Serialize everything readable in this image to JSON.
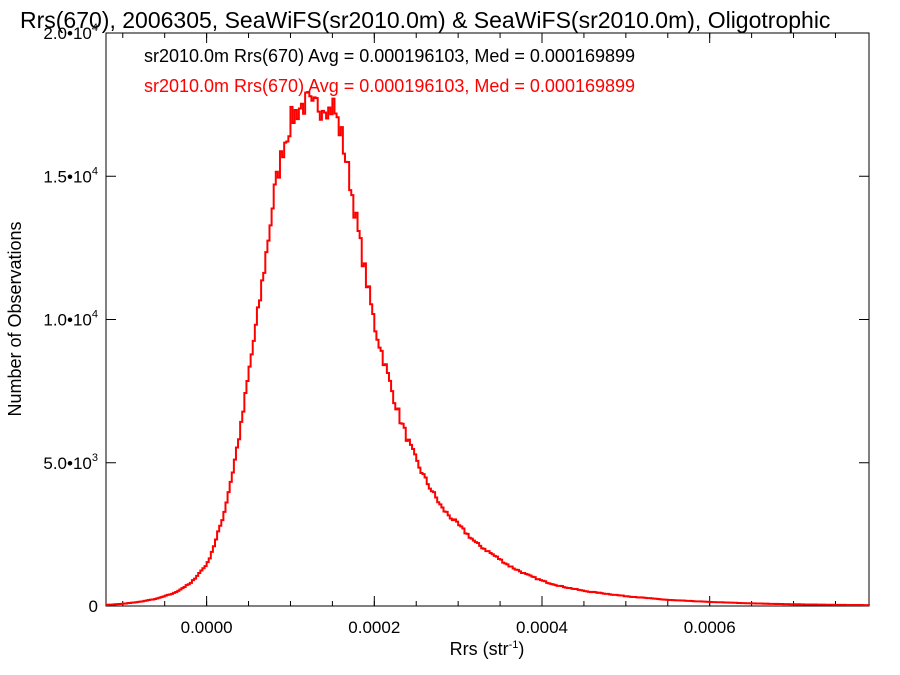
{
  "chart_data": {
    "type": "line",
    "title": "Rrs(670), 2006305, SeaWiFS(sr2010.0m) & SeaWiFS(sr2010.0m), Oligotrophic",
    "xlabel": "Rrs (str",
    "xlabel_sup": "-1",
    "xlabel_end": ")",
    "ylabel": "Number of Observations",
    "xlim": [
      -0.00012,
      0.00079
    ],
    "ylim": [
      0,
      20000
    ],
    "x_ticks": [
      {
        "value": 0.0,
        "label": "0.0000"
      },
      {
        "value": 0.0002,
        "label": "0.0002"
      },
      {
        "value": 0.0004,
        "label": "0.0004"
      },
      {
        "value": 0.0006,
        "label": "0.0006"
      }
    ],
    "y_ticks": [
      {
        "value": 0,
        "mant": "0",
        "exp": ""
      },
      {
        "value": 5000,
        "mant": "5.0•10",
        "exp": "3"
      },
      {
        "value": 10000,
        "mant": "1.0•10",
        "exp": "4"
      },
      {
        "value": 15000,
        "mant": "1.5•10",
        "exp": "4"
      },
      {
        "value": 20000,
        "mant": "2.0•10",
        "exp": "4"
      }
    ],
    "annotations": [
      {
        "text": "sr2010.0m Rrs(670) Avg = 0.000196103, Med = 0.000169899",
        "color": "#000000"
      },
      {
        "text": "sr2010.0m Rrs(670) Avg = 0.000196103, Med = 0.000169899",
        "color": "#ff0000"
      }
    ],
    "series": [
      {
        "color": "#ff0000",
        "style": "step",
        "x": [
          -0.00012,
          -0.0001,
          -8e-05,
          -6e-05,
          -4e-05,
          -2e-05,
          0.0,
          1e-05,
          2e-05,
          3e-05,
          4e-05,
          5e-05,
          6e-05,
          7e-05,
          8e-05,
          9e-05,
          0.0001,
          0.00011,
          0.00012,
          0.000125,
          0.00013,
          0.000135,
          0.00014,
          0.000145,
          0.00015,
          0.000155,
          0.00016,
          0.00017,
          0.00018,
          0.00019,
          0.0002,
          0.00021,
          0.00022,
          0.00023,
          0.00024,
          0.00025,
          0.00026,
          0.00027,
          0.00028,
          0.0003,
          0.00032,
          0.00034,
          0.00036,
          0.00038,
          0.0004,
          0.00042,
          0.00045,
          0.0005,
          0.00055,
          0.0006,
          0.00065,
          0.0007,
          0.00075,
          0.00079
        ],
        "y": [
          40,
          80,
          150,
          260,
          450,
          800,
          1500,
          2300,
          3300,
          4700,
          6300,
          8300,
          10200,
          12300,
          14500,
          16000,
          17000,
          17400,
          17600,
          17300,
          17500,
          17400,
          17600,
          17300,
          17500,
          16900,
          16400,
          14800,
          13000,
          11300,
          9700,
          8600,
          7500,
          6500,
          5700,
          5000,
          4400,
          3900,
          3400,
          2800,
          2200,
          1800,
          1400,
          1100,
          870,
          700,
          520,
          340,
          210,
          140,
          90,
          60,
          40,
          30
        ]
      }
    ]
  }
}
